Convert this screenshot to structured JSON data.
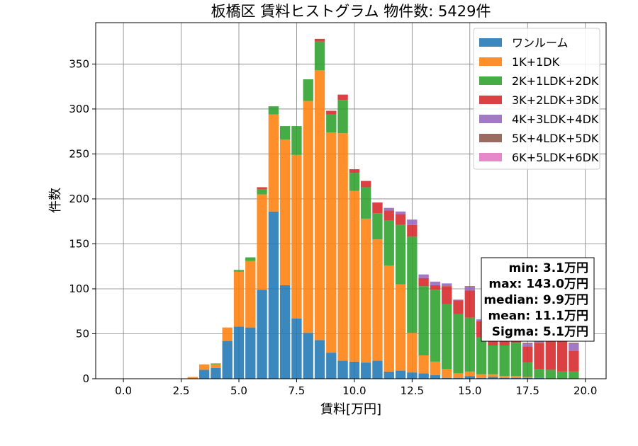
{
  "chart_data": {
    "type": "bar",
    "stacked": true,
    "title": "板橋区 賃料ヒストグラム 物件数: 5429件",
    "xlabel": "賃料[万円]",
    "ylabel": "件数",
    "xlim": [
      -1.2,
      20.9
    ],
    "ylim": [
      0,
      396
    ],
    "xticks": [
      0,
      2.5,
      5,
      7.5,
      10,
      12.5,
      15,
      17.5,
      20
    ],
    "xtick_labels": [
      "0.0",
      "2.5",
      "5.0",
      "7.5",
      "10.0",
      "12.5",
      "15.0",
      "17.5",
      "20.0"
    ],
    "yticks": [
      0,
      50,
      100,
      150,
      200,
      250,
      300,
      350
    ],
    "ytick_labels": [
      "0",
      "50",
      "100",
      "150",
      "200",
      "250",
      "300",
      "350"
    ],
    "grid": true,
    "legend_position": "top-right",
    "bin_width": 0.5,
    "x": [
      3.0,
      3.5,
      4.0,
      4.5,
      5.0,
      5.5,
      6.0,
      6.5,
      7.0,
      7.5,
      8.0,
      8.5,
      9.0,
      9.5,
      10.0,
      10.5,
      11.0,
      11.5,
      12.0,
      12.5,
      13.0,
      13.5,
      14.0,
      14.5,
      15.0,
      15.5,
      16.0,
      16.5,
      17.0,
      17.5,
      18.0,
      18.5,
      19.0,
      19.5
    ],
    "series": [
      {
        "name": "ワンルーム",
        "color": "#1f77b4",
        "values": [
          0,
          10,
          12,
          42,
          58,
          57,
          99,
          186,
          104,
          67,
          51,
          43,
          29,
          20,
          19,
          18,
          20,
          8,
          9,
          7,
          6,
          4,
          1,
          1,
          3,
          1,
          2,
          1,
          1,
          1,
          1,
          0,
          0,
          0
        ]
      },
      {
        "name": "1K+1DK",
        "color": "#ff7f0e",
        "values": [
          2,
          6,
          4,
          15,
          61,
          74,
          106,
          108,
          162,
          182,
          258,
          300,
          245,
          253,
          190,
          160,
          135,
          118,
          96,
          44,
          20,
          15,
          10,
          5,
          5,
          4,
          3,
          2,
          2,
          1,
          0,
          0,
          0,
          0
        ]
      },
      {
        "name": "2K+1LDK+2DK",
        "color": "#2ca02c",
        "values": [
          0,
          0,
          1,
          0,
          2,
          4,
          6,
          9,
          15,
          32,
          24,
          32,
          20,
          37,
          20,
          35,
          29,
          50,
          66,
          107,
          77,
          80,
          72,
          66,
          60,
          41,
          32,
          34,
          37,
          16,
          10,
          10,
          8,
          8
        ]
      },
      {
        "name": "3K+2LDK+3DK",
        "color": "#d62728",
        "values": [
          0,
          0,
          0,
          0,
          0,
          0,
          2,
          0,
          0,
          0,
          0,
          3,
          4,
          6,
          4,
          7,
          12,
          11,
          12,
          13,
          9,
          5,
          20,
          15,
          30,
          18,
          21,
          12,
          6,
          18,
          29,
          37,
          35,
          23
        ]
      },
      {
        "name": "4K+3LDK+4DK",
        "color": "#9467bd",
        "values": [
          0,
          0,
          0,
          0,
          0,
          0,
          0,
          0,
          0,
          0,
          0,
          0,
          0,
          0,
          0,
          0,
          0,
          3,
          3,
          6,
          4,
          4,
          3,
          1,
          4,
          2,
          2,
          1,
          2,
          3,
          3,
          4,
          5,
          8
        ]
      },
      {
        "name": "5K+4LDK+5DK",
        "color": "#8c564b",
        "values": [
          0,
          0,
          0,
          0,
          0,
          0,
          0,
          0,
          0,
          0,
          0,
          0,
          0,
          0,
          0,
          0,
          0,
          0,
          0,
          0,
          0,
          0,
          0,
          0,
          1,
          0,
          1,
          0,
          1,
          1,
          1,
          1,
          1,
          1
        ]
      },
      {
        "name": "6K+5LDK+6DK",
        "color": "#e377c2",
        "values": [
          0,
          0,
          0,
          0,
          0,
          0,
          0,
          0,
          0,
          0,
          0,
          0,
          0,
          0,
          0,
          0,
          0,
          0,
          0,
          0,
          0,
          0,
          0,
          0,
          0,
          0,
          0,
          0,
          0,
          0,
          0,
          0,
          0,
          0
        ]
      }
    ],
    "stats": [
      "min: 3.1万円",
      "max: 143.0万円",
      "median: 9.9万円",
      "mean: 11.1万円",
      "Sigma: 5.1万円"
    ]
  }
}
